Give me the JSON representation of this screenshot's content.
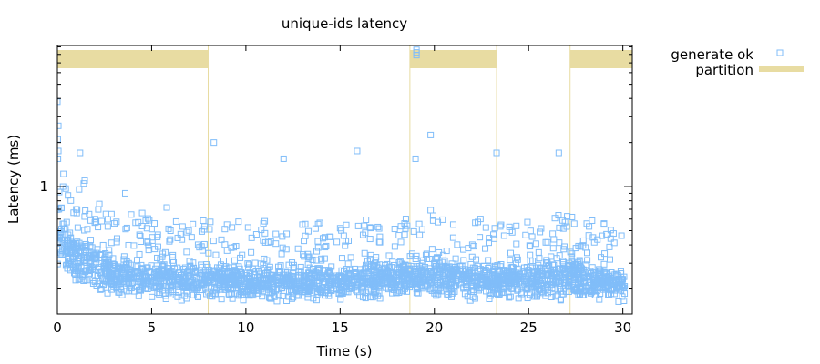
{
  "chart_data": {
    "type": "scatter",
    "title": "unique-ids latency",
    "xlabel": "Time (s)",
    "ylabel": "Latency (ms)",
    "xlim": [
      0,
      30.5
    ],
    "ylim": [
      0.135,
      9.2
    ],
    "yscale": "log",
    "xticks": [
      0,
      5,
      10,
      15,
      20,
      25,
      30
    ],
    "yticks": [
      1
    ],
    "grid": false,
    "legend": "top-right, outside plot",
    "colors": {
      "generate_ok": "#80bdf9",
      "partition": "#e8dca2",
      "axes": "#000000"
    },
    "series": [
      {
        "name": "generate ok",
        "marker": "open-square",
        "points": [
          [
            0.0,
            3.8
          ],
          [
            0.05,
            2.6
          ],
          [
            0.02,
            2.1
          ],
          [
            0.05,
            1.75
          ],
          [
            0.03,
            1.55
          ],
          [
            1.2,
            1.7
          ],
          [
            8.3,
            2.0
          ],
          [
            12.0,
            1.55
          ],
          [
            15.9,
            1.75
          ],
          [
            19.0,
            1.55
          ],
          [
            19.8,
            2.25
          ],
          [
            23.3,
            1.7
          ],
          [
            26.6,
            1.7
          ],
          [
            19.05,
            8.6
          ],
          [
            19.05,
            8.25
          ],
          [
            19.05,
            7.9
          ],
          [
            0.3,
            1.0
          ],
          [
            1.4,
            1.05
          ],
          [
            1.45,
            1.1
          ],
          [
            3.6,
            0.9
          ],
          [
            5.8,
            0.72
          ],
          [
            4.5,
            0.66
          ],
          [
            19.8,
            0.69
          ],
          [
            27.3,
            0.62
          ],
          [
            6.0,
            0.5
          ],
          [
            9.0,
            0.55
          ],
          [
            11.0,
            0.58
          ],
          [
            13.0,
            0.55
          ],
          [
            15.0,
            0.52
          ],
          [
            17.0,
            0.53
          ],
          [
            21.0,
            0.55
          ],
          [
            24.0,
            0.5
          ],
          [
            29.0,
            0.56
          ],
          [
            2.0,
            0.6
          ],
          [
            1.0,
            0.7
          ]
        ],
        "trend": [
          [
            0.0,
            0.52,
            0.27,
            0.9
          ],
          [
            0.5,
            0.42,
            0.22,
            0.75
          ],
          [
            1.0,
            0.34,
            0.2,
            0.62
          ],
          [
            2.0,
            0.28,
            0.18,
            0.52
          ],
          [
            3.0,
            0.25,
            0.16,
            0.45
          ],
          [
            4.0,
            0.23,
            0.16,
            0.4
          ],
          [
            6.0,
            0.22,
            0.155,
            0.38
          ],
          [
            10.0,
            0.215,
            0.155,
            0.36
          ],
          [
            15.0,
            0.21,
            0.155,
            0.36
          ],
          [
            19.0,
            0.23,
            0.16,
            0.42
          ],
          [
            20.0,
            0.23,
            0.16,
            0.4
          ],
          [
            25.0,
            0.21,
            0.155,
            0.37
          ],
          [
            27.5,
            0.22,
            0.16,
            0.42
          ],
          [
            30.0,
            0.2,
            0.155,
            0.32
          ]
        ]
      },
      {
        "name": "partition",
        "intervals": [
          [
            0.0,
            8.0
          ],
          [
            18.7,
            23.3
          ],
          [
            27.2,
            30.5
          ]
        ]
      }
    ]
  }
}
